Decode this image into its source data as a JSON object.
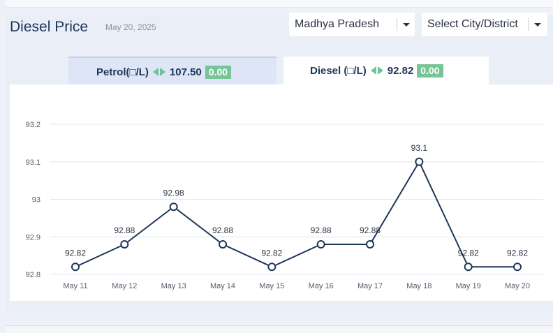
{
  "header": {
    "title": "Diesel Price",
    "date": "May 20, 2025"
  },
  "filters": {
    "state": "Madhya Pradesh",
    "city": "Select City/District"
  },
  "tabs": [
    {
      "label": "Petrol(□/L)",
      "price": "107.50",
      "change": "0.00"
    },
    {
      "label": "Diesel (□/L)",
      "price": "92.82",
      "change": "0.00"
    }
  ],
  "icons": {
    "caret": "chevron-down-icon",
    "change_arrows": "left-right-arrows-icon"
  },
  "colors": {
    "line": "#1d3557",
    "arrow": "#6fc29a",
    "badge": "#76c596"
  },
  "chart_data": {
    "type": "line",
    "categories": [
      "May 11",
      "May 12",
      "May 13",
      "May 14",
      "May 15",
      "May 16",
      "May 17",
      "May 18",
      "May 19",
      "May 20"
    ],
    "series": [
      {
        "values": [
          92.82,
          92.88,
          92.98,
          92.88,
          92.82,
          92.88,
          92.88,
          93.1,
          92.82,
          92.82
        ]
      }
    ],
    "data_labels": [
      "92.82",
      "92.88",
      "92.98",
      "92.88",
      "92.82",
      "92.88",
      "92.88",
      "93.1",
      "92.82",
      "92.82"
    ],
    "yticks": [
      92.8,
      92.9,
      93,
      93.1,
      93.2
    ],
    "ytick_labels": [
      "92.8",
      "92.9",
      "93",
      "93.1",
      "93.2"
    ],
    "ylim": [
      92.8,
      93.2
    ],
    "grid": true,
    "legend": "none"
  }
}
